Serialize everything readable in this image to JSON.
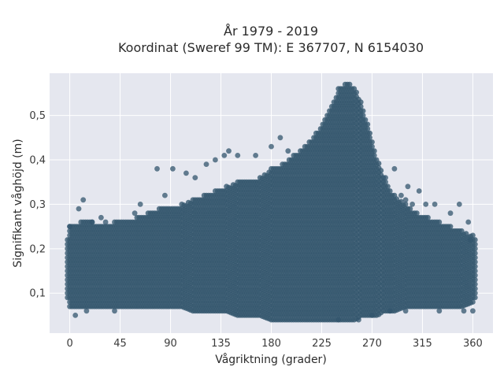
{
  "chart_data": {
    "type": "scatter",
    "title_lines": [
      "År 1979 - 2019",
      "Koordinat (Sweref 99 TM): E 367707, N 6154030"
    ],
    "xlabel": "Vågriktning (grader)",
    "ylabel": "Signifikant våghöjd (m)",
    "xlim": [
      -18,
      378
    ],
    "ylim": [
      0.01,
      0.595
    ],
    "x_ticks": [
      0,
      45,
      90,
      135,
      180,
      225,
      270,
      315,
      360
    ],
    "x_tick_labels": [
      "0",
      "45",
      "90",
      "135",
      "180",
      "225",
      "270",
      "315",
      "360"
    ],
    "y_ticks": [
      0.1,
      0.2,
      0.3,
      0.4,
      0.5
    ],
    "y_tick_labels": [
      "0,1",
      "0,2",
      "0,3",
      "0,4",
      "0,5"
    ],
    "grid": true,
    "background": "#e5e7ef",
    "marker_color": "#33566d",
    "x_step": 2,
    "y_step": 0.01,
    "envelope": {
      "x": [
        -2,
        0,
        10,
        20,
        30,
        40,
        50,
        60,
        70,
        80,
        90,
        100,
        110,
        120,
        130,
        140,
        150,
        160,
        170,
        180,
        190,
        200,
        210,
        220,
        230,
        235,
        240,
        245,
        250,
        255,
        260,
        265,
        270,
        275,
        280,
        290,
        300,
        310,
        320,
        330,
        340,
        350,
        360,
        362
      ],
      "upper": [
        0.22,
        0.25,
        0.26,
        0.26,
        0.25,
        0.26,
        0.26,
        0.27,
        0.28,
        0.29,
        0.29,
        0.3,
        0.31,
        0.32,
        0.33,
        0.34,
        0.35,
        0.35,
        0.36,
        0.38,
        0.39,
        0.41,
        0.43,
        0.46,
        0.5,
        0.53,
        0.56,
        0.57,
        0.57,
        0.56,
        0.53,
        0.49,
        0.44,
        0.4,
        0.36,
        0.32,
        0.3,
        0.28,
        0.27,
        0.26,
        0.25,
        0.24,
        0.23,
        0.22
      ],
      "lower": [
        0.09,
        0.07,
        0.07,
        0.07,
        0.07,
        0.07,
        0.07,
        0.07,
        0.07,
        0.07,
        0.07,
        0.07,
        0.06,
        0.06,
        0.06,
        0.06,
        0.05,
        0.05,
        0.05,
        0.04,
        0.04,
        0.04,
        0.04,
        0.04,
        0.04,
        0.04,
        0.04,
        0.04,
        0.04,
        0.04,
        0.05,
        0.05,
        0.05,
        0.05,
        0.06,
        0.06,
        0.07,
        0.07,
        0.07,
        0.07,
        0.07,
        0.07,
        0.08,
        0.09
      ]
    },
    "outliers": [
      [
        0,
        0.25
      ],
      [
        8,
        0.29
      ],
      [
        12,
        0.31
      ],
      [
        20,
        0.26
      ],
      [
        28,
        0.27
      ],
      [
        32,
        0.26
      ],
      [
        5,
        0.05
      ],
      [
        15,
        0.06
      ],
      [
        40,
        0.06
      ],
      [
        58,
        0.28
      ],
      [
        63,
        0.3
      ],
      [
        78,
        0.38
      ],
      [
        85,
        0.32
      ],
      [
        92,
        0.38
      ],
      [
        104,
        0.37
      ],
      [
        112,
        0.36
      ],
      [
        122,
        0.39
      ],
      [
        130,
        0.4
      ],
      [
        138,
        0.41
      ],
      [
        142,
        0.42
      ],
      [
        150,
        0.41
      ],
      [
        166,
        0.41
      ],
      [
        180,
        0.43
      ],
      [
        188,
        0.45
      ],
      [
        195,
        0.42
      ],
      [
        282,
        0.36
      ],
      [
        290,
        0.38
      ],
      [
        296,
        0.32
      ],
      [
        300,
        0.31
      ],
      [
        302,
        0.34
      ],
      [
        306,
        0.3
      ],
      [
        312,
        0.33
      ],
      [
        318,
        0.3
      ],
      [
        326,
        0.3
      ],
      [
        340,
        0.28
      ],
      [
        348,
        0.3
      ],
      [
        356,
        0.26
      ],
      [
        358,
        0.22
      ],
      [
        352,
        0.06
      ],
      [
        360,
        0.06
      ],
      [
        330,
        0.06
      ],
      [
        300,
        0.06
      ],
      [
        258,
        0.04
      ],
      [
        270,
        0.05
      ],
      [
        240,
        0.04
      ],
      [
        286,
        0.06
      ]
    ]
  }
}
